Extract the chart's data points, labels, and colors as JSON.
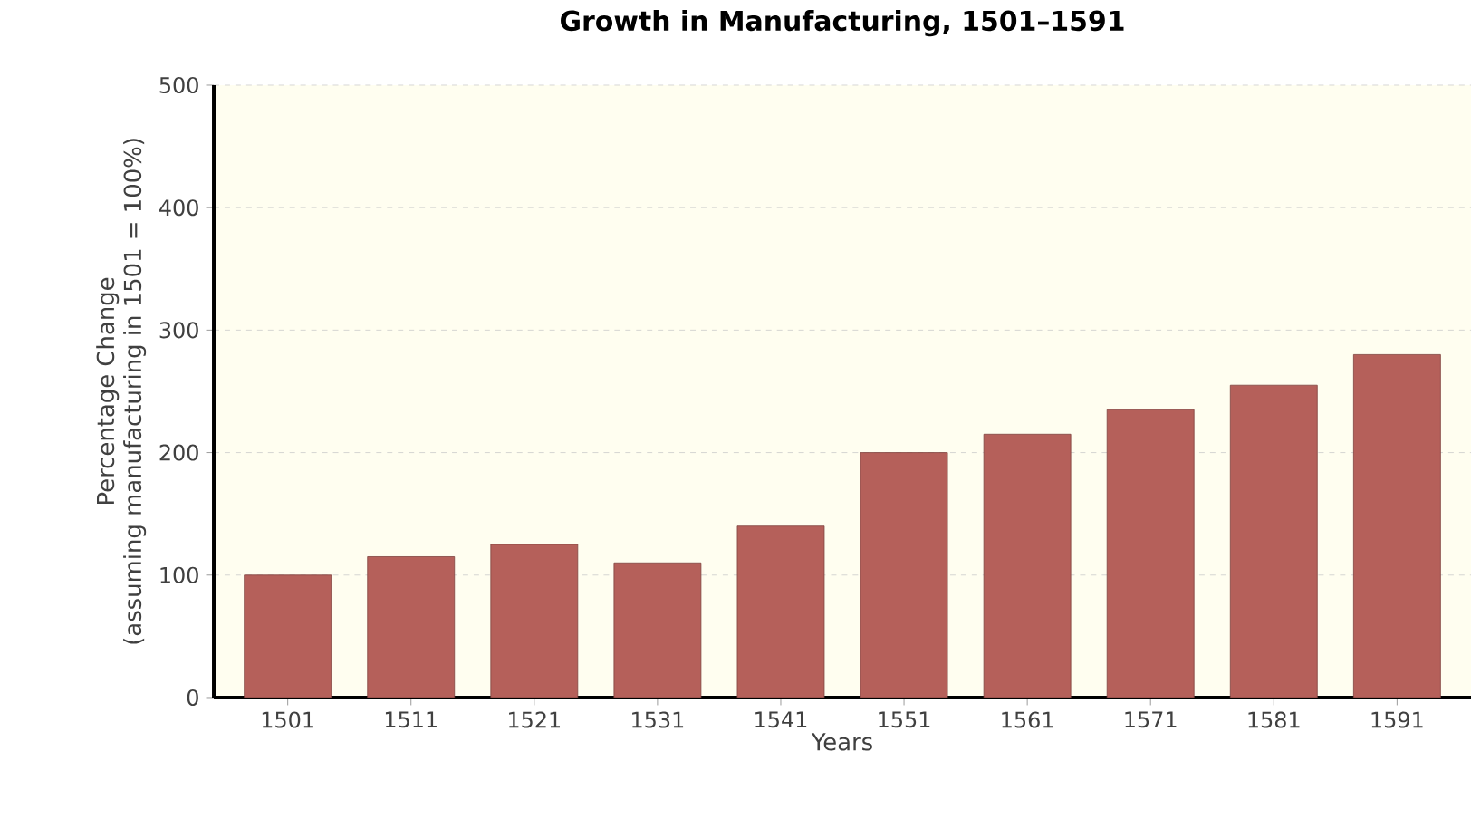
{
  "chart_data": {
    "type": "bar",
    "title": "Growth in Manufacturing, 1501–1591",
    "xlabel": "Years",
    "ylabel": "Percentage Change\n(assuming manufacturing in 1501 = 100%)",
    "categories": [
      "1501",
      "1511",
      "1521",
      "1531",
      "1541",
      "1551",
      "1561",
      "1571",
      "1581",
      "1591"
    ],
    "values": [
      100,
      115,
      125,
      110,
      140,
      200,
      215,
      235,
      255,
      280
    ],
    "color": "#b5605a",
    "ylim": [
      0,
      500
    ],
    "yticks": [
      0,
      100,
      200,
      300,
      400,
      500
    ],
    "grid": "y"
  }
}
